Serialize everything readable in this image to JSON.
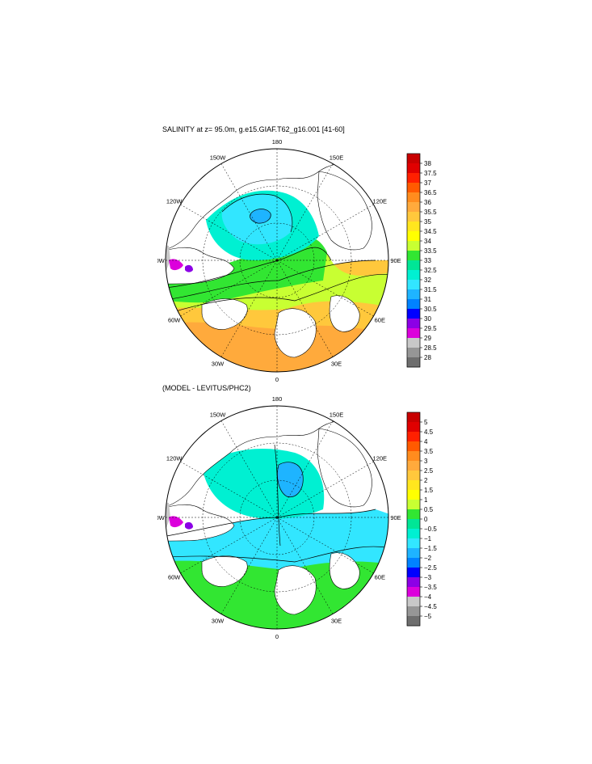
{
  "panels": [
    {
      "title": "SALINITY at z=  95.0m, g.e15.GIAF.T62_g16.001 [41-60]",
      "colorbar_labels": [
        "38",
        "37.5",
        "37",
        "36.5",
        "36",
        "35.5",
        "35",
        "34.5",
        "34",
        "33.5",
        "33",
        "32.5",
        "32",
        "31.5",
        "31",
        "30.5",
        "30",
        "29.5",
        "29",
        "28.5",
        "28"
      ]
    },
    {
      "title": "(MODEL - LEVITUS/PHC2)",
      "colorbar_labels": [
        "5",
        "4.5",
        "4",
        "3.5",
        "3",
        "2.5",
        "2",
        "1.5",
        "1",
        "0.5",
        "0",
        "−0.5",
        "−1",
        "−1.5",
        "−2",
        "−2.5",
        "−3",
        "−3.5",
        "−4",
        "−4.5",
        "−5"
      ]
    }
  ],
  "map_labels": [
    "180",
    "150E",
    "120E",
    "90E",
    "60E",
    "30E",
    "0",
    "30W",
    "60W",
    "90W",
    "120W",
    "150W"
  ],
  "colorbar_colors": [
    "#c80000",
    "#e00000",
    "#ff2000",
    "#ff5a00",
    "#ff8c1e",
    "#ffaa3c",
    "#ffc83c",
    "#ffe61e",
    "#ffff00",
    "#c8ff32",
    "#32e632",
    "#00e696",
    "#00f0d2",
    "#32e6ff",
    "#1eb4ff",
    "#0082ff",
    "#0000ff",
    "#8c00e6",
    "#dc00dc",
    "#c8c8c8",
    "#969696",
    "#6e6e6e"
  ]
}
